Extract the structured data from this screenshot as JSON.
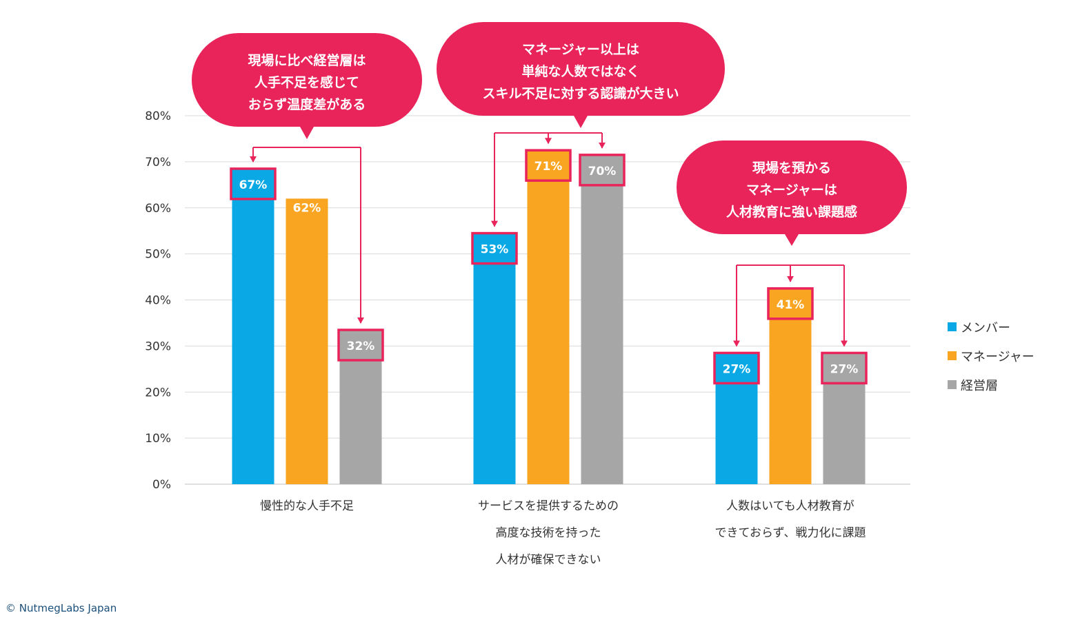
{
  "chart_data": {
    "type": "bar",
    "categories": [
      [
        "慢性的な人手不足"
      ],
      [
        "サービスを提供するための",
        "高度な技術を持った",
        "人材が確保できない"
      ],
      [
        "人数はいても人材教育が",
        "できておらず、戦力化に課題"
      ]
    ],
    "series": [
      {
        "name": "メンバー",
        "color": "#0aa9e6",
        "values": [
          67,
          53,
          27
        ]
      },
      {
        "name": "マネージャー",
        "color": "#f9a521",
        "values": [
          62,
          71,
          41
        ]
      },
      {
        "name": "経営層",
        "color": "#a6a6a6",
        "values": [
          32,
          70,
          27
        ]
      }
    ],
    "data_labels": [
      [
        "67%",
        "53%",
        "27%"
      ],
      [
        "62%",
        "71%",
        "41%"
      ],
      [
        "32%",
        "70%",
        "27%"
      ]
    ],
    "highlighted": [
      [
        true,
        true,
        true
      ],
      [
        false,
        true,
        true
      ],
      [
        true,
        true,
        true
      ]
    ],
    "ylim": [
      0,
      80
    ],
    "yticks": [
      "0%",
      "10%",
      "20%",
      "30%",
      "40%",
      "50%",
      "60%",
      "70%",
      "80%"
    ],
    "grid": true,
    "legend_position": "right",
    "highlight_color": "#e8245a",
    "annotations": [
      {
        "category": 0,
        "lines": [
          "現場に比べ経営層は",
          "人手不足を感じて",
          "おらず温度差がある"
        ],
        "targets": [
          0,
          2
        ]
      },
      {
        "category": 1,
        "lines": [
          "マネージャー以上は",
          "単純な人数ではなく",
          "スキル不足に対する認識が大きい"
        ],
        "targets": [
          0,
          1,
          2
        ]
      },
      {
        "category": 2,
        "lines": [
          "現場を預かる",
          "マネージャーは",
          "人材教育に強い課題感"
        ],
        "targets": [
          0,
          1,
          2
        ]
      }
    ]
  },
  "copyright": "© NutmegLabs Japan"
}
